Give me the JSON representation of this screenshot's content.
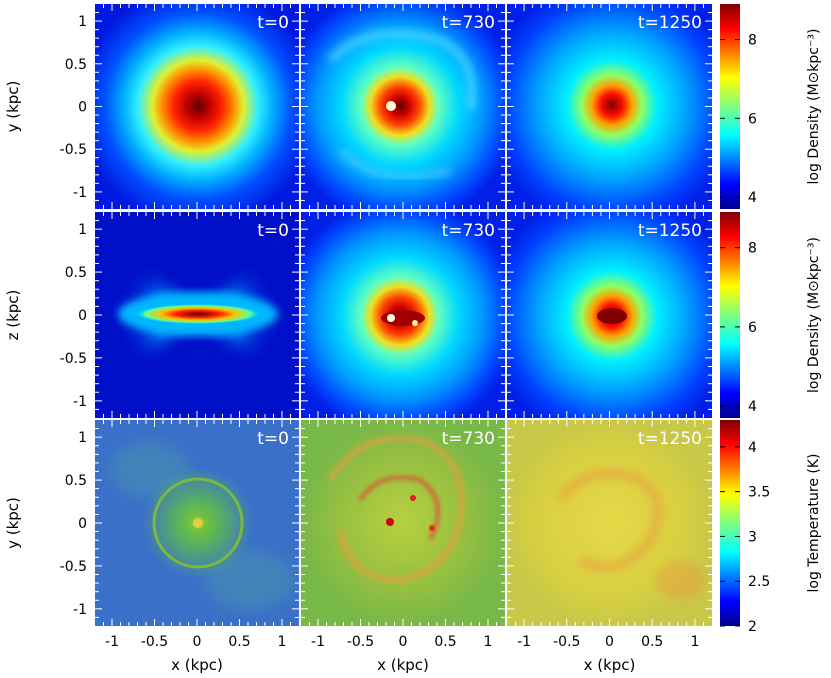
{
  "chart_data": {
    "type": "heatmap",
    "rows": [
      {
        "ylabel": "y (kpc)",
        "colorbar_label": "log Density (M⊙kpc⁻³)",
        "colorbar_ticks": [
          "4",
          "6",
          "8"
        ],
        "colorbar_range": [
          3.7,
          8.9
        ],
        "colormap": "jet"
      },
      {
        "ylabel": "z (kpc)",
        "colorbar_label": "log Density (M⊙kpc⁻³)",
        "colorbar_ticks": [
          "4",
          "6",
          "8"
        ],
        "colorbar_range": [
          3.7,
          8.9
        ],
        "colormap": "jet"
      },
      {
        "ylabel": "y (kpc)",
        "colorbar_label": "log Temperature (K)",
        "colorbar_ticks": [
          "2",
          "2.5",
          "3",
          "3.5",
          "4"
        ],
        "colorbar_range": [
          2.0,
          4.3
        ],
        "colormap": "jet"
      }
    ],
    "columns": [
      {
        "time_label": "t=0",
        "xlabel": "x (kpc)"
      },
      {
        "time_label": "t=730",
        "xlabel": "x (kpc)"
      },
      {
        "time_label": "t=1250",
        "xlabel": "x (kpc)"
      }
    ],
    "x_ticks": [
      "-1",
      "-0.5",
      "0",
      "0.5",
      "1"
    ],
    "y_ticks": [
      "1",
      "0.5",
      "0",
      "-0.5",
      "-1"
    ],
    "xlim": [
      -1.2,
      1.2
    ],
    "ylim": [
      -1.2,
      1.2
    ]
  }
}
